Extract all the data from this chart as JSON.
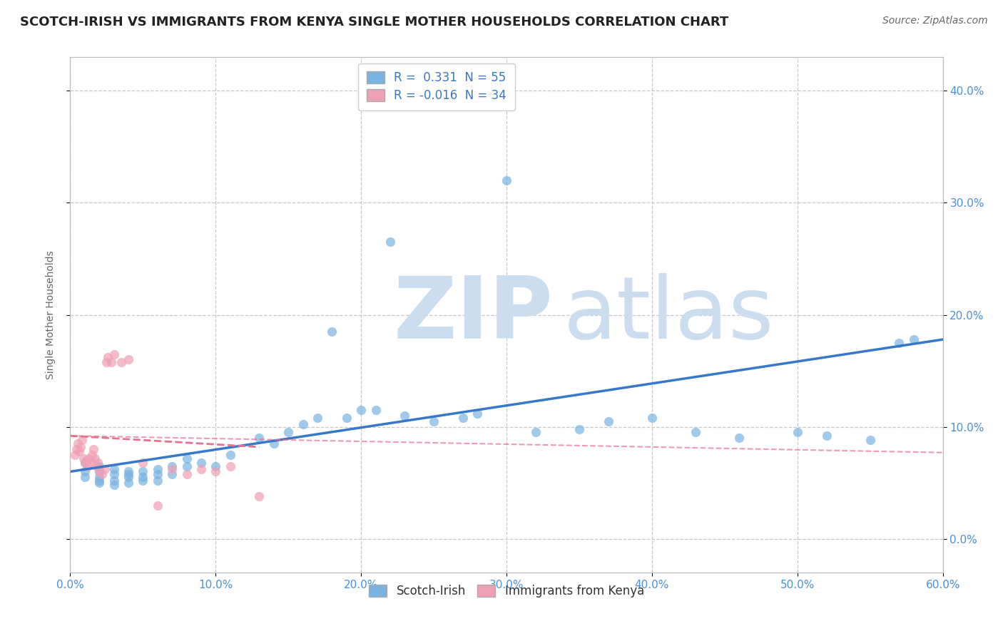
{
  "title": "SCOTCH-IRISH VS IMMIGRANTS FROM KENYA SINGLE MOTHER HOUSEHOLDS CORRELATION CHART",
  "source": "Source: ZipAtlas.com",
  "ylabel": "Single Mother Households",
  "xlabel": "",
  "xlim": [
    0.0,
    0.6
  ],
  "ylim": [
    -0.03,
    0.43
  ],
  "xticks": [
    0.0,
    0.1,
    0.2,
    0.3,
    0.4,
    0.5,
    0.6
  ],
  "yticks_right": [
    0.0,
    0.1,
    0.2,
    0.3,
    0.4
  ],
  "background_color": "#ffffff",
  "grid_color": "#c8c8c8",
  "watermark_zip": "ZIP",
  "watermark_atlas": "atlas",
  "watermark_color": "#ccddef",
  "blue_scatter_x": [
    0.01,
    0.01,
    0.01,
    0.02,
    0.02,
    0.02,
    0.02,
    0.02,
    0.03,
    0.03,
    0.03,
    0.03,
    0.04,
    0.04,
    0.04,
    0.04,
    0.05,
    0.05,
    0.05,
    0.06,
    0.06,
    0.06,
    0.07,
    0.07,
    0.08,
    0.08,
    0.09,
    0.1,
    0.11,
    0.13,
    0.14,
    0.15,
    0.16,
    0.17,
    0.18,
    0.19,
    0.2,
    0.21,
    0.22,
    0.23,
    0.25,
    0.27,
    0.28,
    0.3,
    0.32,
    0.35,
    0.37,
    0.4,
    0.43,
    0.46,
    0.5,
    0.52,
    0.55,
    0.57,
    0.58
  ],
  "blue_scatter_y": [
    0.068,
    0.06,
    0.055,
    0.065,
    0.055,
    0.05,
    0.06,
    0.052,
    0.062,
    0.058,
    0.052,
    0.048,
    0.058,
    0.055,
    0.05,
    0.06,
    0.06,
    0.055,
    0.052,
    0.058,
    0.062,
    0.052,
    0.065,
    0.058,
    0.072,
    0.065,
    0.068,
    0.065,
    0.075,
    0.09,
    0.085,
    0.095,
    0.102,
    0.108,
    0.185,
    0.108,
    0.115,
    0.115,
    0.265,
    0.11,
    0.105,
    0.108,
    0.112,
    0.32,
    0.095,
    0.098,
    0.105,
    0.108,
    0.095,
    0.09,
    0.095,
    0.092,
    0.088,
    0.175,
    0.178
  ],
  "blue_color": "#7ab3e0",
  "blue_label": "Scotch-Irish",
  "blue_R": 0.331,
  "blue_N": 55,
  "blue_trend_x": [
    0.0,
    0.6
  ],
  "blue_trend_y": [
    0.06,
    0.178
  ],
  "pink_scatter_x": [
    0.003,
    0.004,
    0.005,
    0.006,
    0.007,
    0.008,
    0.009,
    0.01,
    0.011,
    0.012,
    0.013,
    0.014,
    0.015,
    0.016,
    0.017,
    0.018,
    0.019,
    0.02,
    0.022,
    0.024,
    0.025,
    0.026,
    0.028,
    0.03,
    0.035,
    0.04,
    0.05,
    0.06,
    0.07,
    0.08,
    0.09,
    0.1,
    0.11,
    0.13
  ],
  "pink_scatter_y": [
    0.075,
    0.08,
    0.085,
    0.078,
    0.082,
    0.088,
    0.072,
    0.068,
    0.07,
    0.065,
    0.072,
    0.068,
    0.075,
    0.08,
    0.072,
    0.065,
    0.068,
    0.06,
    0.058,
    0.062,
    0.158,
    0.162,
    0.158,
    0.165,
    0.158,
    0.16,
    0.068,
    0.03,
    0.062,
    0.058,
    0.062,
    0.06,
    0.065,
    0.038
  ],
  "pink_color": "#f0a0b5",
  "pink_label": "Immigrants from Kenya",
  "pink_R": -0.016,
  "pink_N": 34,
  "pink_trend_x": [
    0.0,
    0.13
  ],
  "pink_trend_y": [
    0.092,
    0.082
  ],
  "title_fontsize": 13,
  "axis_label_fontsize": 10,
  "tick_fontsize": 11,
  "legend_fontsize": 12,
  "source_fontsize": 10
}
